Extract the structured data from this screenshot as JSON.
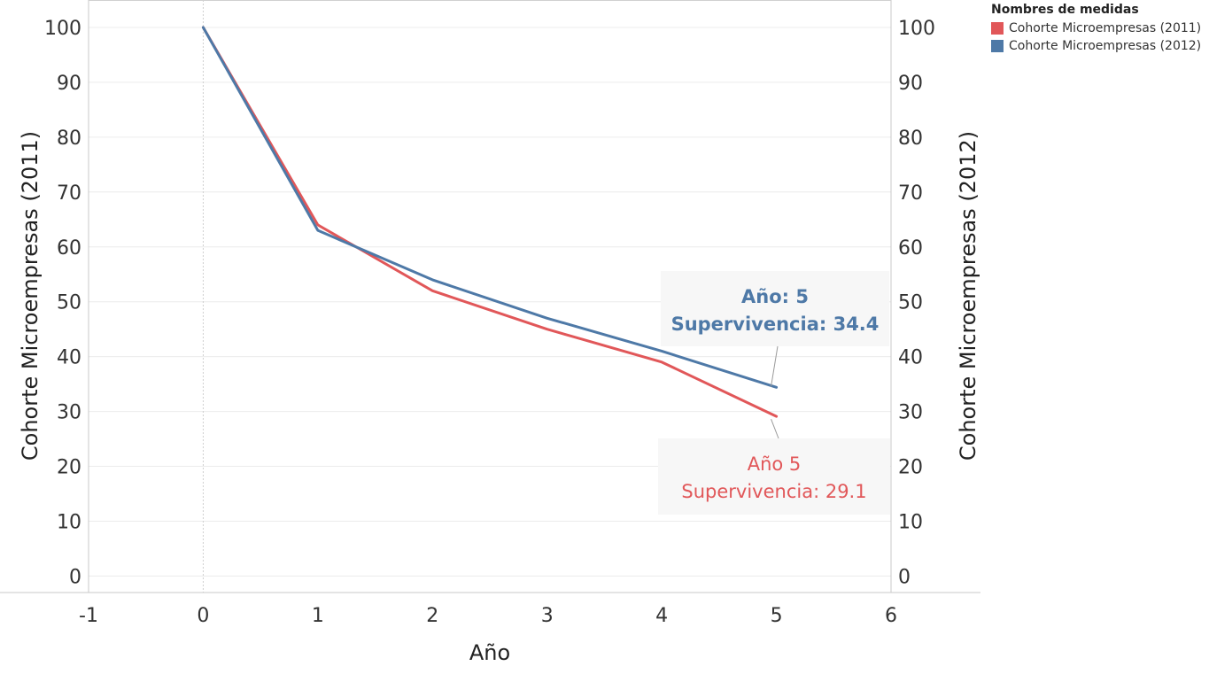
{
  "chart_data": {
    "type": "line",
    "x": [
      0,
      1,
      2,
      3,
      4,
      5
    ],
    "series": [
      {
        "name": "Cohorte Microempresas (2011)",
        "color": "#e15759",
        "values": [
          100,
          64,
          52,
          45,
          39,
          29.1
        ]
      },
      {
        "name": "Cohorte Microempresas (2012)",
        "color": "#4e79a7",
        "values": [
          100,
          63,
          54,
          47,
          41,
          34.4
        ]
      }
    ],
    "xlabel": "Año",
    "ylabel_left": "Cohorte Microempresas (2011)",
    "ylabel_right": "Cohorte Microempresas (2012)",
    "xlim": [
      -1,
      6
    ],
    "ylim": [
      -3,
      105
    ],
    "xticks": [
      "-1",
      "0",
      "1",
      "2",
      "3",
      "4",
      "5",
      "6"
    ],
    "yticks": [
      "0",
      "10",
      "20",
      "30",
      "40",
      "50",
      "60",
      "70",
      "80",
      "90",
      "100"
    ],
    "grid": true,
    "legend": {
      "title": "Nombres de medidas",
      "placement": "top-right",
      "items": [
        "Cohorte Microempresas (2011)",
        "Cohorte Microempresas (2012)"
      ]
    },
    "annotations": [
      {
        "series": 1,
        "line1": "Año: 5",
        "line2": "Supervivencia: 34.4",
        "color": "#4e79a7",
        "bold": true
      },
      {
        "series": 0,
        "line1": "Año 5",
        "line2": "Supervivencia: 29.1",
        "color": "#e15759",
        "bold": false
      }
    ]
  }
}
